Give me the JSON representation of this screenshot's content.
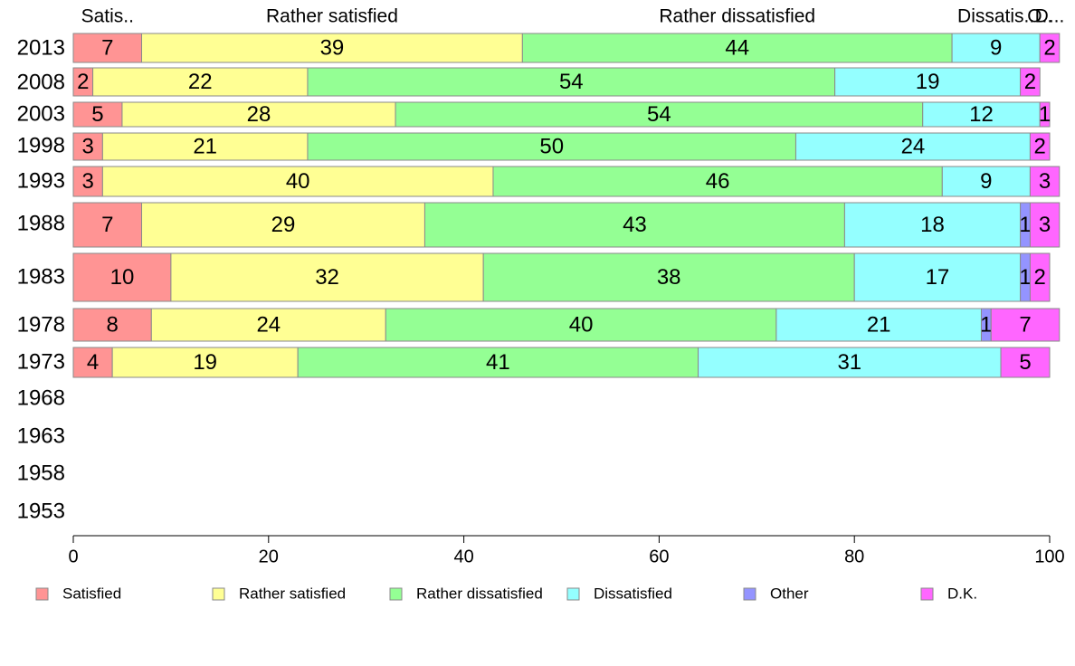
{
  "chart_data": {
    "type": "bar",
    "orientation": "horizontal",
    "stacked": true,
    "categories": [
      "2013",
      "2008",
      "2003",
      "1998",
      "1993",
      "1988",
      "1983",
      "1978",
      "1973",
      "1968",
      "1963",
      "1958",
      "1953"
    ],
    "series": [
      {
        "name": "Satisfied",
        "color": "#ff9494",
        "values": [
          7,
          2,
          5,
          3,
          3,
          7,
          10,
          8,
          4,
          null,
          null,
          null,
          null
        ]
      },
      {
        "name": "Rather satisfied",
        "color": "#ffff94",
        "values": [
          39,
          22,
          28,
          21,
          40,
          29,
          32,
          24,
          19,
          null,
          null,
          null,
          null
        ]
      },
      {
        "name": "Rather dissatisfied",
        "color": "#94ff94",
        "values": [
          44,
          54,
          54,
          50,
          46,
          43,
          38,
          40,
          41,
          null,
          null,
          null,
          null
        ]
      },
      {
        "name": "Dissatisfied",
        "color": "#94ffff",
        "values": [
          9,
          19,
          12,
          24,
          9,
          18,
          17,
          21,
          31,
          null,
          null,
          null,
          null
        ]
      },
      {
        "name": "Other",
        "color": "#9494ff",
        "values": [
          0,
          0,
          0,
          0,
          0,
          1,
          1,
          1,
          0,
          null,
          null,
          null,
          null
        ]
      },
      {
        "name": "D.K.",
        "color": "#ff66ff",
        "values": [
          2,
          2,
          1,
          2,
          3,
          3,
          2,
          7,
          5,
          null,
          null,
          null,
          null
        ]
      }
    ],
    "top_labels": [
      "Satis..",
      "Rather satisfied",
      "Rather dissatisfied",
      "Dissatis..",
      "O..",
      "D..."
    ],
    "xlim": [
      0,
      100
    ],
    "x_ticks": [
      "0",
      "20",
      "40",
      "60",
      "80",
      "100"
    ],
    "legend_position": "bottom",
    "legend": [
      "Satisfied",
      "Rather satisfied",
      "Rather dissatisfied",
      "Dissatisfied",
      "Other",
      "D.K."
    ],
    "grid": false
  }
}
